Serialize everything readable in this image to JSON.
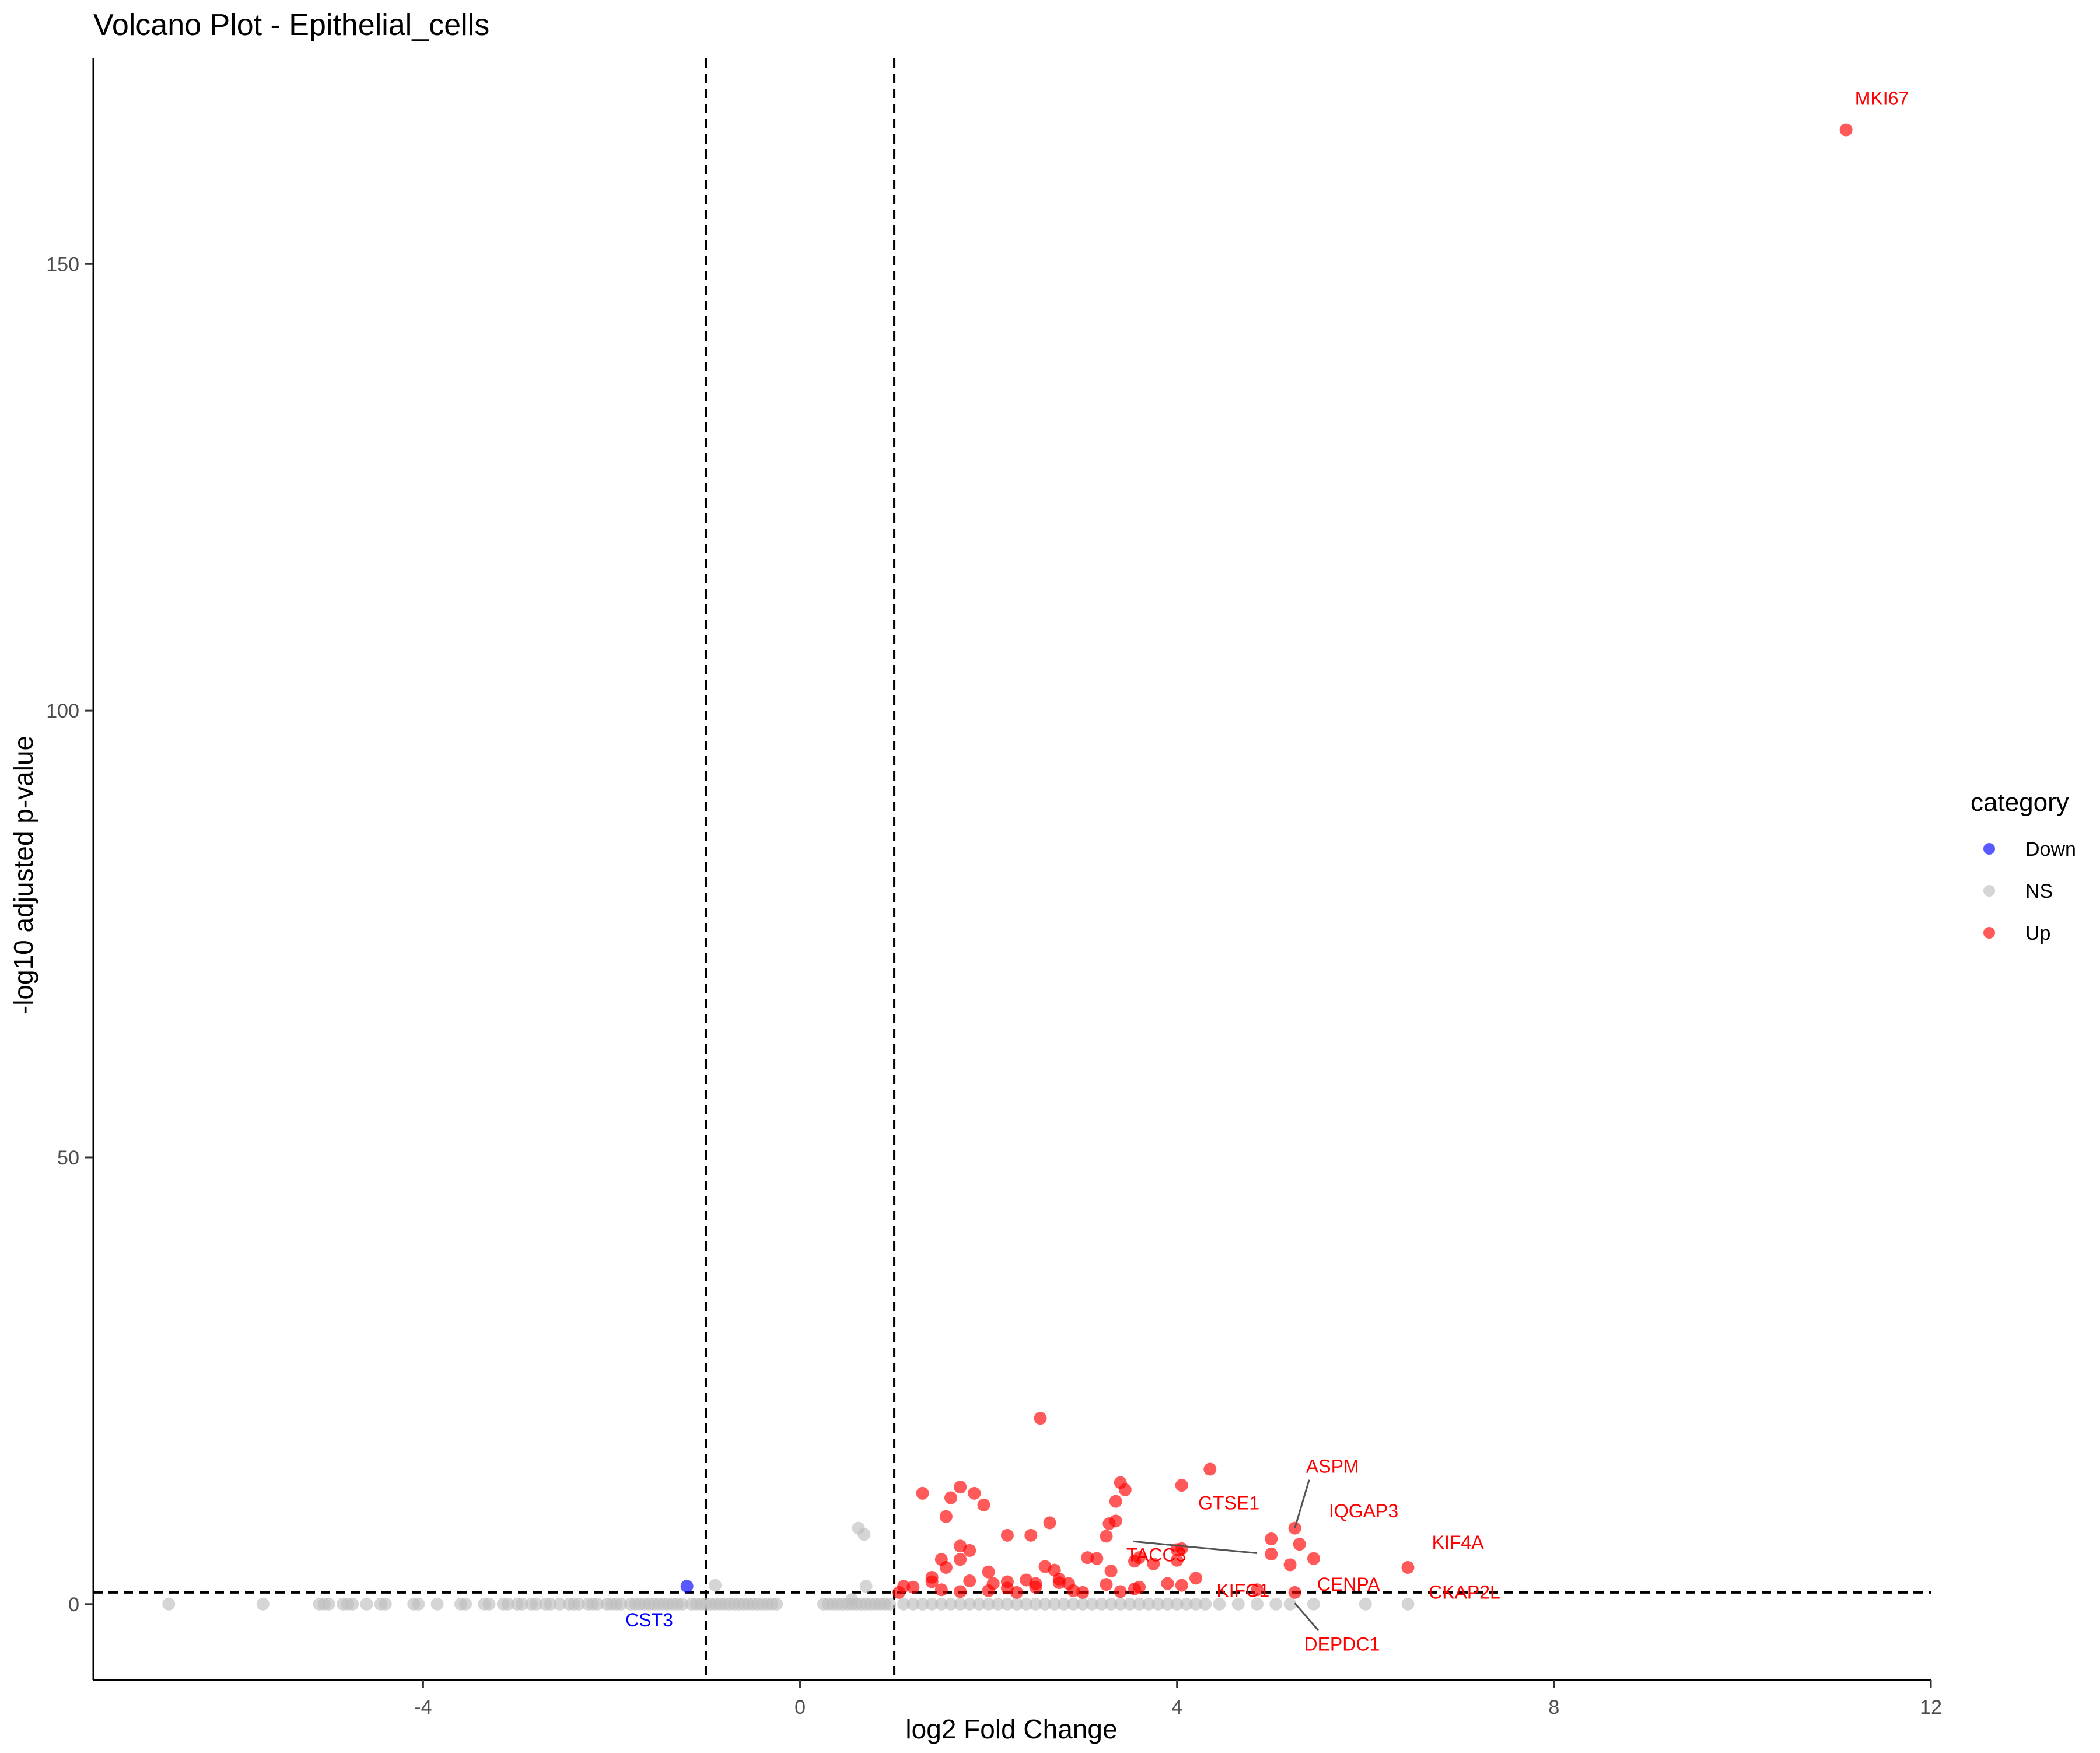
{
  "chart_data": {
    "type": "scatter",
    "title": "Volcano Plot - Epithelial_cells",
    "xlabel": "log2 Fold Change",
    "ylabel": "-log10 adjusted p-value",
    "xlim": [
      -7.5,
      12
    ],
    "ylim": [
      -8.5,
      173
    ],
    "x_ticks": [
      -4,
      0,
      4,
      8,
      12
    ],
    "y_ticks": [
      0,
      50,
      100,
      150
    ],
    "vlines": [
      -1,
      1
    ],
    "hline": 1.3,
    "grid": false,
    "legend": {
      "title": "category",
      "position": "right",
      "entries": [
        {
          "name": "Down",
          "color": "#0000ff"
        },
        {
          "name": "NS",
          "color": "#bebebe"
        },
        {
          "name": "Up",
          "color": "#ff0000"
        }
      ]
    },
    "series": [
      {
        "name": "Down",
        "color": "#0000ff",
        "points": [
          [
            -1.2,
            2.0
          ]
        ]
      },
      {
        "name": "NS",
        "color": "#bebebe",
        "points": [
          [
            -6.7,
            0
          ],
          [
            -5.7,
            0
          ],
          [
            -5.1,
            0
          ],
          [
            -5.05,
            0
          ],
          [
            -5.0,
            0
          ],
          [
            -4.85,
            0
          ],
          [
            -4.8,
            0
          ],
          [
            -4.75,
            0
          ],
          [
            -4.6,
            0
          ],
          [
            -4.45,
            0
          ],
          [
            -4.4,
            0
          ],
          [
            -4.1,
            0
          ],
          [
            -4.05,
            0
          ],
          [
            -3.85,
            0
          ],
          [
            -3.6,
            0
          ],
          [
            -3.55,
            0
          ],
          [
            -3.35,
            0
          ],
          [
            -3.3,
            0
          ],
          [
            -3.15,
            0
          ],
          [
            -3.1,
            0
          ],
          [
            -3.0,
            0
          ],
          [
            -2.95,
            0
          ],
          [
            -2.85,
            0
          ],
          [
            -2.8,
            0
          ],
          [
            -2.7,
            0
          ],
          [
            -2.65,
            0
          ],
          [
            -2.55,
            0
          ],
          [
            -2.45,
            0
          ],
          [
            -2.4,
            0
          ],
          [
            -2.35,
            0
          ],
          [
            -2.25,
            0
          ],
          [
            -2.2,
            0
          ],
          [
            -2.15,
            0
          ],
          [
            -2.05,
            0
          ],
          [
            -2.0,
            0
          ],
          [
            -1.95,
            0
          ],
          [
            -1.9,
            0
          ],
          [
            -1.8,
            0
          ],
          [
            -1.75,
            0
          ],
          [
            -1.7,
            0
          ],
          [
            -1.65,
            0
          ],
          [
            -1.6,
            0
          ],
          [
            -1.55,
            0
          ],
          [
            -1.5,
            0
          ],
          [
            -1.45,
            0
          ],
          [
            -1.4,
            0
          ],
          [
            -1.35,
            0
          ],
          [
            -1.3,
            0
          ],
          [
            -1.25,
            0
          ],
          [
            -1.15,
            0
          ],
          [
            -1.1,
            0
          ],
          [
            -1.05,
            0
          ],
          [
            -1.0,
            0
          ],
          [
            -0.95,
            0
          ],
          [
            -0.9,
            0
          ],
          [
            -0.85,
            0
          ],
          [
            -0.8,
            0
          ],
          [
            -0.75,
            0
          ],
          [
            -0.7,
            0
          ],
          [
            -0.65,
            0
          ],
          [
            -0.6,
            0
          ],
          [
            -0.55,
            0
          ],
          [
            -0.5,
            0
          ],
          [
            -0.45,
            0
          ],
          [
            -0.4,
            0
          ],
          [
            -0.35,
            0
          ],
          [
            -0.3,
            0
          ],
          [
            -0.25,
            0
          ],
          [
            -0.9,
            2.1
          ],
          [
            0.25,
            0
          ],
          [
            0.3,
            0
          ],
          [
            0.35,
            0
          ],
          [
            0.4,
            0
          ],
          [
            0.45,
            0
          ],
          [
            0.5,
            0
          ],
          [
            0.55,
            0
          ],
          [
            0.6,
            0
          ],
          [
            0.65,
            0
          ],
          [
            0.7,
            0
          ],
          [
            0.75,
            0
          ],
          [
            0.8,
            0
          ],
          [
            0.85,
            0
          ],
          [
            0.9,
            0
          ],
          [
            0.95,
            0
          ],
          [
            0.62,
            8.5
          ],
          [
            0.68,
            7.8
          ],
          [
            0.7,
            2.0
          ],
          [
            0.55,
            0.5
          ],
          [
            1.1,
            0
          ],
          [
            1.2,
            0
          ],
          [
            1.3,
            0
          ],
          [
            1.4,
            0
          ],
          [
            1.5,
            0
          ],
          [
            1.6,
            0
          ],
          [
            1.7,
            0
          ],
          [
            1.8,
            0
          ],
          [
            1.9,
            0
          ],
          [
            2.0,
            0
          ],
          [
            2.1,
            0
          ],
          [
            2.2,
            0
          ],
          [
            2.3,
            0
          ],
          [
            2.4,
            0
          ],
          [
            2.5,
            0
          ],
          [
            2.6,
            0
          ],
          [
            2.7,
            0
          ],
          [
            2.8,
            0
          ],
          [
            2.9,
            0
          ],
          [
            3.0,
            0
          ],
          [
            3.1,
            0
          ],
          [
            3.2,
            0
          ],
          [
            3.3,
            0
          ],
          [
            3.4,
            0
          ],
          [
            3.5,
            0
          ],
          [
            3.6,
            0
          ],
          [
            3.7,
            0
          ],
          [
            3.8,
            0
          ],
          [
            3.9,
            0
          ],
          [
            4.0,
            0
          ],
          [
            4.1,
            0
          ],
          [
            4.2,
            0
          ],
          [
            4.3,
            0
          ],
          [
            4.45,
            0
          ],
          [
            4.65,
            0
          ],
          [
            4.85,
            0
          ],
          [
            5.05,
            0
          ],
          [
            5.2,
            0
          ],
          [
            5.45,
            0
          ],
          [
            6.0,
            0
          ],
          [
            6.45,
            0
          ]
        ]
      },
      {
        "name": "Up",
        "color": "#ff0000",
        "points": [
          [
            11.1,
            165.0
          ],
          [
            2.55,
            20.8
          ],
          [
            4.35,
            15.1
          ],
          [
            3.4,
            13.6
          ],
          [
            4.05,
            13.3
          ],
          [
            3.45,
            12.8
          ],
          [
            1.7,
            13.1
          ],
          [
            1.3,
            12.4
          ],
          [
            1.85,
            12.4
          ],
          [
            1.6,
            11.9
          ],
          [
            3.35,
            11.5
          ],
          [
            1.95,
            11.1
          ],
          [
            1.55,
            9.8
          ],
          [
            3.35,
            9.3
          ],
          [
            3.28,
            9.0
          ],
          [
            2.65,
            9.1
          ],
          [
            5.25,
            8.5
          ],
          [
            2.2,
            7.7
          ],
          [
            2.45,
            7.7
          ],
          [
            3.25,
            7.6
          ],
          [
            5.0,
            7.3
          ],
          [
            5.3,
            6.7
          ],
          [
            1.7,
            6.5
          ],
          [
            1.8,
            6.0
          ],
          [
            4.05,
            6.2
          ],
          [
            4.0,
            6.1
          ],
          [
            5.0,
            5.6
          ],
          [
            3.6,
            5.2
          ],
          [
            5.45,
            5.1
          ],
          [
            1.5,
            5.0
          ],
          [
            1.7,
            5.0
          ],
          [
            3.05,
            5.2
          ],
          [
            3.15,
            5.1
          ],
          [
            3.55,
            4.8
          ],
          [
            4.0,
            4.9
          ],
          [
            3.75,
            4.5
          ],
          [
            5.2,
            4.4
          ],
          [
            6.45,
            4.1
          ],
          [
            1.55,
            4.1
          ],
          [
            2.6,
            4.2
          ],
          [
            2.7,
            3.8
          ],
          [
            3.3,
            3.7
          ],
          [
            2.0,
            3.6
          ],
          [
            1.4,
            3.0
          ],
          [
            4.2,
            2.9
          ],
          [
            2.75,
            2.8
          ],
          [
            2.4,
            2.7
          ],
          [
            2.75,
            2.4
          ],
          [
            2.85,
            2.3
          ],
          [
            1.4,
            2.5
          ],
          [
            1.8,
            2.6
          ],
          [
            2.2,
            2.5
          ],
          [
            2.05,
            2.3
          ],
          [
            2.5,
            2.3
          ],
          [
            3.25,
            2.2
          ],
          [
            3.6,
            1.9
          ],
          [
            3.9,
            2.3
          ],
          [
            4.05,
            2.1
          ],
          [
            3.55,
            1.7
          ],
          [
            2.5,
            1.9
          ],
          [
            2.2,
            1.8
          ],
          [
            1.1,
            2.0
          ],
          [
            1.2,
            1.9
          ],
          [
            1.5,
            1.6
          ],
          [
            1.7,
            1.4
          ],
          [
            2.0,
            1.5
          ],
          [
            2.9,
            1.5
          ],
          [
            3.0,
            1.3
          ],
          [
            4.85,
            1.6
          ],
          [
            5.25,
            1.3
          ],
          [
            1.05,
            1.3
          ],
          [
            2.3,
            1.3
          ],
          [
            3.4,
            1.4
          ]
        ]
      }
    ],
    "annotations": [
      {
        "label": "MKI67",
        "color": "#ff0000",
        "x": 11.1,
        "y": 165.0,
        "label_x": 11.48,
        "label_y": 167.8,
        "anchor": "middle",
        "leader": false
      },
      {
        "label": "ASPM",
        "color": "#ff0000",
        "x": 5.25,
        "y": 8.5,
        "label_x": 5.65,
        "label_y": 14.7,
        "anchor": "middle",
        "leader": true
      },
      {
        "label": "GTSE1",
        "color": "#ff0000",
        "x": 5.0,
        "y": 7.3,
        "label_x": 4.55,
        "label_y": 10.6,
        "anchor": "middle",
        "leader": false
      },
      {
        "label": "IQGAP3",
        "color": "#ff0000",
        "x": 5.3,
        "y": 6.7,
        "label_x": 5.98,
        "label_y": 9.7,
        "anchor": "middle",
        "leader": false
      },
      {
        "label": "KIF4A",
        "color": "#ff0000",
        "x": 6.45,
        "y": 4.1,
        "label_x": 6.98,
        "label_y": 6.2,
        "anchor": "middle",
        "leader": false
      },
      {
        "label": "TACC3",
        "color": "#ff0000",
        "x": 4.85,
        "y": 5.7,
        "label_x": 3.78,
        "label_y": 4.8,
        "anchor": "middle",
        "leader": true
      },
      {
        "label": "CENPA",
        "color": "#ff0000",
        "x": 5.25,
        "y": 1.3,
        "label_x": 5.82,
        "label_y": 1.5,
        "anchor": "middle",
        "leader": false
      },
      {
        "label": "KIFC1",
        "color": "#ff0000",
        "x": 4.85,
        "y": 1.6,
        "label_x": 4.7,
        "label_y": 0.8,
        "anchor": "middle",
        "leader": false
      },
      {
        "label": "CKAP2L",
        "color": "#ff0000",
        "x": 6.45,
        "y": 0.1,
        "label_x": 7.05,
        "label_y": 0.6,
        "anchor": "middle",
        "leader": false
      },
      {
        "label": "DEPDC1",
        "color": "#ff0000",
        "x": 5.25,
        "y": 0.1,
        "label_x": 5.75,
        "label_y": -5.2,
        "anchor": "middle",
        "leader": true
      },
      {
        "label": "CST3",
        "color": "#0000ff",
        "x": -1.2,
        "y": 2.0,
        "label_x": -1.6,
        "label_y": -2.5,
        "anchor": "middle",
        "leader": false
      }
    ]
  }
}
